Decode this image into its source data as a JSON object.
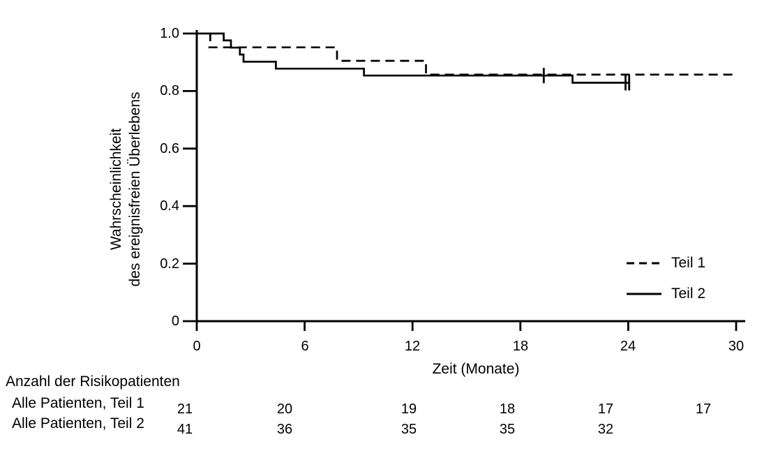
{
  "page": {
    "background": "#ffffff",
    "ink": "#000000"
  },
  "chart_data": {
    "type": "line",
    "subtype": "kaplan-meier-step",
    "title": "",
    "xlabel": "Zeit (Monate)",
    "ylabel_lines": [
      "Wahrscheinlichkeit",
      "des ereignisfreien Überlebens"
    ],
    "xlim": [
      0,
      30
    ],
    "ylim": [
      0,
      1.0
    ],
    "grid": false,
    "xticks": [
      0,
      6,
      12,
      18,
      24,
      30
    ],
    "yticks": [
      {
        "label": "1.0",
        "value": 1.0
      },
      {
        "label": "0.8",
        "value": 0.8
      },
      {
        "label": "0.6",
        "value": 0.6
      },
      {
        "label": "0.4",
        "value": 0.4
      },
      {
        "label": "0.2",
        "value": 0.2
      },
      {
        "label": "0",
        "value": 0.0
      }
    ],
    "legend_position": "right-middle",
    "legend": [
      {
        "label": "Teil 1",
        "style": "dashed"
      },
      {
        "label": "Teil 2",
        "style": "solid"
      }
    ],
    "series": [
      {
        "name": "Teil 1",
        "style": "dashed",
        "points": [
          [
            0.65,
            0.952
          ],
          [
            7.8,
            0.952
          ],
          [
            7.8,
            0.905
          ],
          [
            12.75,
            0.905
          ],
          [
            12.75,
            0.857
          ],
          [
            30,
            0.857
          ]
        ],
        "censors": []
      },
      {
        "name": "Teil 2",
        "style": "solid",
        "points": [
          [
            0,
            1.0
          ],
          [
            1.5,
            1.0
          ],
          [
            1.5,
            0.976
          ],
          [
            1.9,
            0.976
          ],
          [
            1.9,
            0.951
          ],
          [
            2.4,
            0.951
          ],
          [
            2.4,
            0.927
          ],
          [
            2.6,
            0.927
          ],
          [
            2.6,
            0.902
          ],
          [
            4.4,
            0.902
          ],
          [
            4.4,
            0.878
          ],
          [
            9.3,
            0.878
          ],
          [
            9.3,
            0.854
          ],
          [
            20.9,
            0.854
          ],
          [
            20.9,
            0.829
          ],
          [
            24.05,
            0.829
          ]
        ],
        "censors": [
          {
            "m": 0.75,
            "v": 1.0,
            "dir": "down"
          },
          {
            "m": 19.3,
            "v": 0.854,
            "dir": "cross"
          },
          {
            "m": 23.85,
            "v": 0.829,
            "dir": "cross"
          },
          {
            "m": 24.05,
            "v": 0.829,
            "dir": "cross"
          }
        ]
      }
    ],
    "risk_table": {
      "header": "Anzahl der Risikopatienten",
      "columns_months": [
        0,
        6,
        12,
        18,
        24,
        30
      ],
      "rows": [
        {
          "label": "Alle Patienten, Teil 1",
          "values": [
            "21",
            "20",
            "19",
            "18",
            "17",
            "17"
          ]
        },
        {
          "label": "Alle Patienten, Teil 2",
          "values": [
            "41",
            "36",
            "35",
            "35",
            "32",
            ""
          ]
        }
      ]
    }
  }
}
